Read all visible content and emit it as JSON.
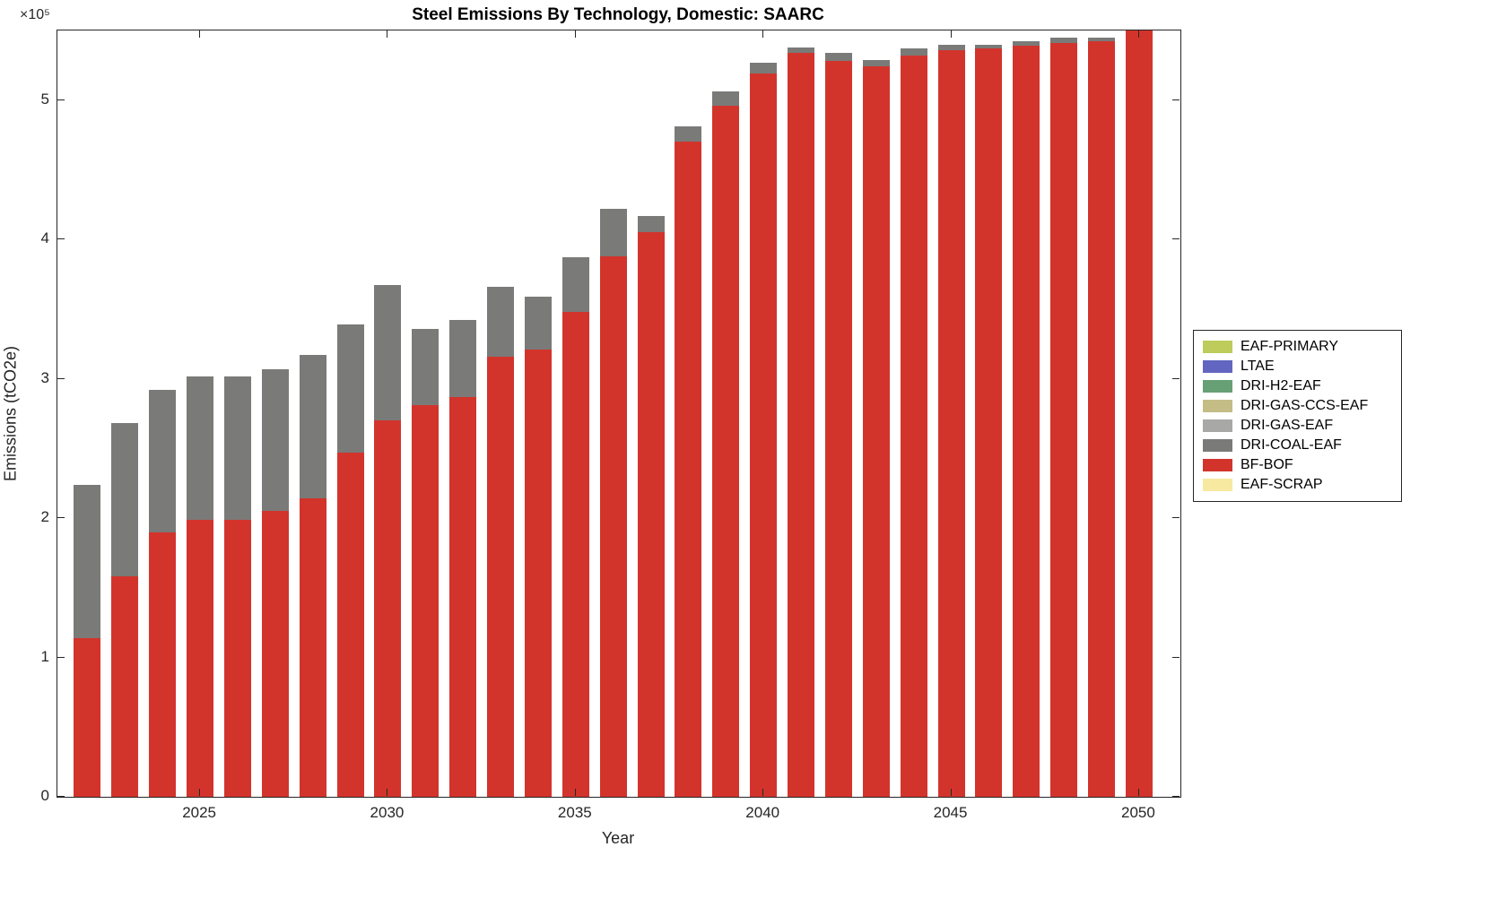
{
  "chart_data": {
    "type": "bar",
    "stacked": true,
    "title": "Steel Emissions By Technology, Domestic: SAARC",
    "xlabel": "Year",
    "ylabel": "Emissions (tCO2e)",
    "y_axis_multiplier_label": "×10⁵",
    "grid": false,
    "legend_position": "right-outside",
    "xlim": [
      2021.2,
      2051.1
    ],
    "ylim": [
      0,
      550000
    ],
    "xticks": [
      2025,
      2030,
      2035,
      2040,
      2045,
      2050
    ],
    "xtick_labels": [
      "2025",
      "2030",
      "2035",
      "2040",
      "2045",
      "2050"
    ],
    "yticks": [
      0,
      100000,
      200000,
      300000,
      400000,
      500000
    ],
    "ytick_labels": [
      "0",
      "1",
      "2",
      "3",
      "4",
      "5"
    ],
    "categories": [
      2022,
      2023,
      2024,
      2025,
      2026,
      2027,
      2028,
      2029,
      2030,
      2031,
      2032,
      2033,
      2034,
      2035,
      2036,
      2037,
      2038,
      2039,
      2040,
      2041,
      2042,
      2043,
      2044,
      2045,
      2046,
      2047,
      2048,
      2049,
      2050
    ],
    "stack_order_bottom_to_top": [
      "EAF-SCRAP",
      "BF-BOF",
      "DRI-COAL-EAF",
      "DRI-GAS-EAF",
      "DRI-GAS-CCS-EAF",
      "DRI-H2-EAF",
      "LTAE",
      "EAF-PRIMARY"
    ],
    "series": [
      {
        "name": "EAF-PRIMARY",
        "color": "#bdcc5a",
        "values": [
          0,
          0,
          0,
          0,
          0,
          0,
          0,
          0,
          0,
          0,
          0,
          0,
          0,
          0,
          0,
          0,
          0,
          0,
          0,
          0,
          0,
          0,
          0,
          0,
          0,
          0,
          0,
          0,
          0
        ]
      },
      {
        "name": "LTAE",
        "color": "#6266c0",
        "values": [
          0,
          0,
          0,
          0,
          0,
          0,
          0,
          0,
          0,
          0,
          0,
          0,
          0,
          0,
          0,
          0,
          0,
          0,
          0,
          0,
          0,
          0,
          0,
          0,
          0,
          0,
          0,
          0,
          0
        ]
      },
      {
        "name": "DRI-H2-EAF",
        "color": "#67a075",
        "values": [
          0,
          0,
          0,
          0,
          0,
          0,
          0,
          0,
          0,
          0,
          0,
          0,
          0,
          0,
          0,
          0,
          0,
          0,
          0,
          0,
          0,
          0,
          0,
          0,
          0,
          0,
          0,
          0,
          0
        ]
      },
      {
        "name": "DRI-GAS-CCS-EAF",
        "color": "#c4bd85",
        "values": [
          0,
          0,
          0,
          0,
          0,
          0,
          0,
          0,
          0,
          0,
          0,
          0,
          0,
          0,
          0,
          0,
          0,
          0,
          0,
          0,
          0,
          0,
          0,
          0,
          0,
          0,
          0,
          0,
          0
        ]
      },
      {
        "name": "DRI-GAS-EAF",
        "color": "#a8a8a6",
        "values": [
          0,
          0,
          0,
          0,
          0,
          0,
          0,
          0,
          0,
          0,
          0,
          0,
          0,
          0,
          0,
          0,
          0,
          0,
          0,
          0,
          0,
          0,
          0,
          0,
          0,
          0,
          0,
          0,
          0
        ]
      },
      {
        "name": "DRI-COAL-EAF",
        "color": "#7a7a78",
        "values": [
          110000,
          110000,
          102000,
          103000,
          103000,
          102000,
          103000,
          92000,
          97000,
          55000,
          55000,
          50000,
          38000,
          39000,
          34000,
          12000,
          11000,
          10000,
          8000,
          4000,
          6000,
          5000,
          5000,
          4000,
          3000,
          3000,
          4000,
          3000,
          4000
        ]
      },
      {
        "name": "BF-BOF",
        "color": "#d2342c",
        "values": [
          114000,
          158000,
          190000,
          199000,
          199000,
          205000,
          214000,
          247000,
          270000,
          281000,
          287000,
          316000,
          321000,
          348000,
          388000,
          405000,
          470000,
          496000,
          519000,
          534000,
          528000,
          524000,
          532000,
          536000,
          537000,
          539000,
          541000,
          542000,
          552000
        ]
      },
      {
        "name": "EAF-SCRAP",
        "color": "#f7e9a0",
        "values": [
          0,
          0,
          0,
          0,
          0,
          0,
          0,
          0,
          0,
          0,
          0,
          0,
          0,
          0,
          0,
          0,
          0,
          0,
          0,
          0,
          0,
          0,
          0,
          0,
          0,
          0,
          0,
          0,
          0
        ]
      }
    ]
  }
}
